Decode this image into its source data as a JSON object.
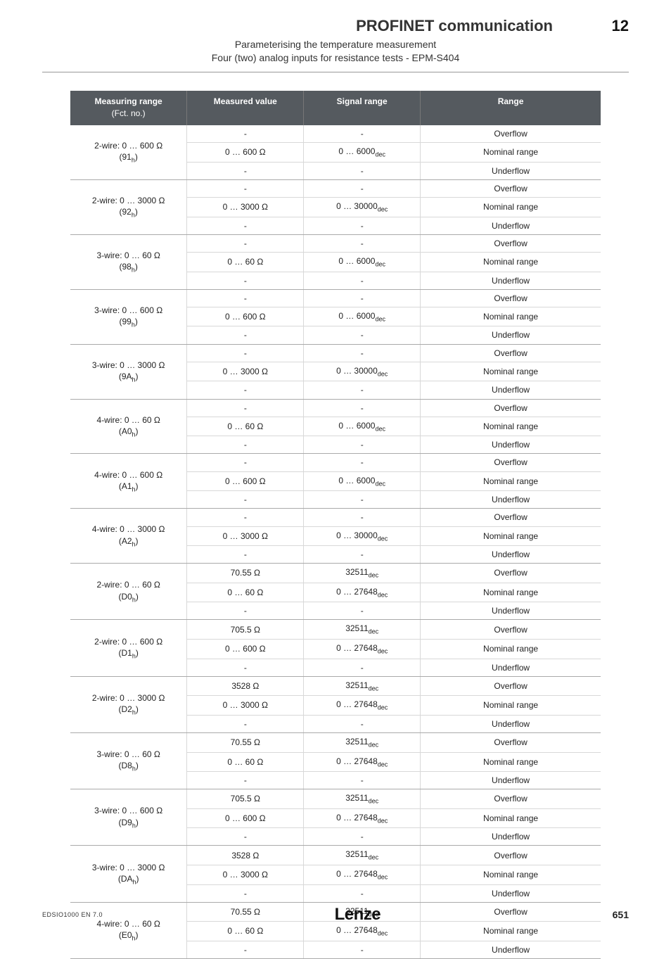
{
  "header": {
    "title": "PROFINET communication",
    "chapter": "12",
    "subtitle1": "Parameterising the temperature measurement",
    "subtitle2": "Four (two) analog inputs for resistance tests - EPM-S404"
  },
  "columns": {
    "c1": "Measuring range",
    "c1sub": "(Fct. no.)",
    "c2": "Measured value",
    "c3": "Signal range",
    "c4": "Range"
  },
  "groups": [
    {
      "label": "2-wire: 0 … 600 Ω",
      "fct": "(91",
      "rows": [
        [
          "-",
          "-",
          "Overflow"
        ],
        [
          "0 … 600 Ω",
          "0 … 6000",
          "Nominal range"
        ],
        [
          "-",
          "-",
          "Underflow"
        ]
      ],
      "sigdec": [
        false,
        true,
        false
      ]
    },
    {
      "label": "2-wire: 0 … 3000 Ω",
      "fct": "(92",
      "rows": [
        [
          "-",
          "-",
          "Overflow"
        ],
        [
          "0 … 3000 Ω",
          "0 … 30000",
          "Nominal range"
        ],
        [
          "-",
          "-",
          "Underflow"
        ]
      ],
      "sigdec": [
        false,
        true,
        false
      ]
    },
    {
      "label": "3-wire: 0 … 60 Ω",
      "fct": "(98",
      "rows": [
        [
          "-",
          "-",
          "Overflow"
        ],
        [
          "0 … 60 Ω",
          "0 … 6000",
          "Nominal range"
        ],
        [
          "-",
          "-",
          "Underflow"
        ]
      ],
      "sigdec": [
        false,
        true,
        false
      ]
    },
    {
      "label": "3-wire: 0 … 600 Ω",
      "fct": "(99",
      "rows": [
        [
          "-",
          "-",
          "Overflow"
        ],
        [
          "0 … 600 Ω",
          "0 … 6000",
          "Nominal range"
        ],
        [
          "-",
          "-",
          "Underflow"
        ]
      ],
      "sigdec": [
        false,
        true,
        false
      ]
    },
    {
      "label": "3-wire: 0 … 3000 Ω",
      "fct": "(9A",
      "rows": [
        [
          "-",
          "-",
          "Overflow"
        ],
        [
          "0 … 3000 Ω",
          "0 … 30000",
          "Nominal range"
        ],
        [
          "-",
          "-",
          "Underflow"
        ]
      ],
      "sigdec": [
        false,
        true,
        false
      ]
    },
    {
      "label": "4-wire: 0 … 60 Ω",
      "fct": "(A0",
      "rows": [
        [
          "-",
          "-",
          "Overflow"
        ],
        [
          "0 … 60 Ω",
          "0 … 6000",
          "Nominal range"
        ],
        [
          "-",
          "-",
          "Underflow"
        ]
      ],
      "sigdec": [
        false,
        true,
        false
      ]
    },
    {
      "label": "4-wire: 0 … 600 Ω",
      "fct": "(A1",
      "rows": [
        [
          "-",
          "-",
          "Overflow"
        ],
        [
          "0 … 600 Ω",
          "0 … 6000",
          "Nominal range"
        ],
        [
          "-",
          "-",
          "Underflow"
        ]
      ],
      "sigdec": [
        false,
        true,
        false
      ]
    },
    {
      "label": "4-wire: 0 … 3000 Ω",
      "fct": "(A2",
      "rows": [
        [
          "-",
          "-",
          "Overflow"
        ],
        [
          "0 … 3000 Ω",
          "0 … 30000",
          "Nominal range"
        ],
        [
          "-",
          "-",
          "Underflow"
        ]
      ],
      "sigdec": [
        false,
        true,
        false
      ]
    },
    {
      "label": "2-wire: 0 … 60 Ω",
      "fct": "(D0",
      "rows": [
        [
          "70.55 Ω",
          "32511",
          "Overflow"
        ],
        [
          "0 … 60 Ω",
          "0 … 27648",
          "Nominal range"
        ],
        [
          "-",
          "-",
          "Underflow"
        ]
      ],
      "sigdec": [
        true,
        true,
        false
      ]
    },
    {
      "label": "2-wire: 0 … 600 Ω",
      "fct": "(D1",
      "rows": [
        [
          "705.5 Ω",
          "32511",
          "Overflow"
        ],
        [
          "0 … 600 Ω",
          "0 … 27648",
          "Nominal range"
        ],
        [
          "-",
          "-",
          "Underflow"
        ]
      ],
      "sigdec": [
        true,
        true,
        false
      ]
    },
    {
      "label": "2-wire: 0 … 3000 Ω",
      "fct": "(D2",
      "rows": [
        [
          "3528 Ω",
          "32511",
          "Overflow"
        ],
        [
          "0 … 3000 Ω",
          "0 … 27648",
          "Nominal range"
        ],
        [
          "-",
          "-",
          "Underflow"
        ]
      ],
      "sigdec": [
        true,
        true,
        false
      ]
    },
    {
      "label": "3-wire: 0 … 60 Ω",
      "fct": "(D8",
      "rows": [
        [
          "70.55 Ω",
          "32511",
          "Overflow"
        ],
        [
          "0 … 60 Ω",
          "0 … 27648",
          "Nominal range"
        ],
        [
          "-",
          "-",
          "Underflow"
        ]
      ],
      "sigdec": [
        true,
        true,
        false
      ]
    },
    {
      "label": "3-wire: 0 … 600 Ω",
      "fct": "(D9",
      "rows": [
        [
          "705.5 Ω",
          "32511",
          "Overflow"
        ],
        [
          "0 … 600 Ω",
          "0 … 27648",
          "Nominal range"
        ],
        [
          "-",
          "-",
          "Underflow"
        ]
      ],
      "sigdec": [
        true,
        true,
        false
      ]
    },
    {
      "label": "3-wire: 0 … 3000 Ω",
      "fct": "(DA",
      "rows": [
        [
          "3528 Ω",
          "32511",
          "Overflow"
        ],
        [
          "0 … 3000 Ω",
          "0 … 27648",
          "Nominal range"
        ],
        [
          "-",
          "-",
          "Underflow"
        ]
      ],
      "sigdec": [
        true,
        true,
        false
      ]
    },
    {
      "label": "4-wire: 0 … 60 Ω",
      "fct": "(E0",
      "rows": [
        [
          "70.55 Ω",
          "32511",
          "Overflow"
        ],
        [
          "0 … 60 Ω",
          "0 … 27648",
          "Nominal range"
        ],
        [
          "-",
          "-",
          "Underflow"
        ]
      ],
      "sigdec": [
        true,
        true,
        false
      ]
    }
  ],
  "footer": {
    "doc": "EDSIO1000 EN 7.0",
    "logo": "Lenze",
    "page": "651"
  }
}
